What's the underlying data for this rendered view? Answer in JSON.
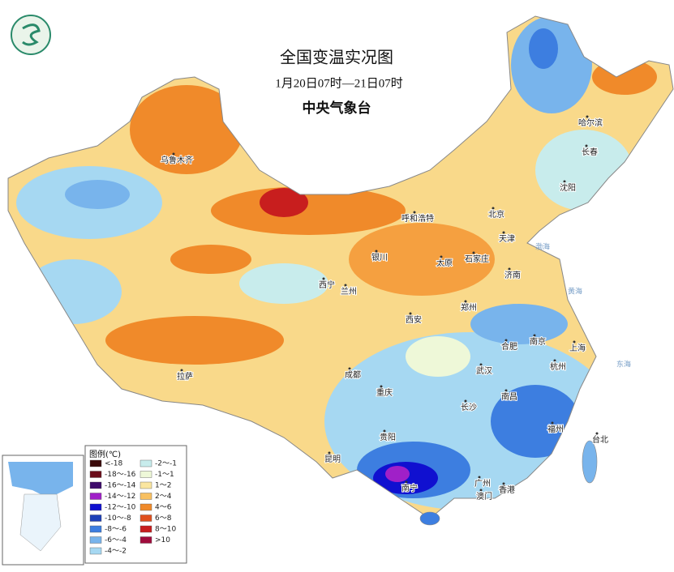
{
  "title": "全国变温实况图",
  "subtitle": "1月20日07时—21日07时",
  "issuer": "中央气象台",
  "cities": [
    "乌鲁木齐",
    "呼和浩特",
    "北京",
    "天津",
    "哈尔滨",
    "长春",
    "沈阳",
    "银川",
    "太原",
    "石家庄",
    "西宁",
    "兰州",
    "济南",
    "郑州",
    "西安",
    "合肥",
    "南京",
    "上海",
    "成都",
    "武汉",
    "杭州",
    "拉萨",
    "重庆",
    "长沙",
    "南昌",
    "福州",
    "贵阳",
    "台北",
    "昆明",
    "广州",
    "澳门",
    "香港",
    "南宁"
  ],
  "seas": [
    "渤海",
    "黄海",
    "东海"
  ],
  "legend": {
    "title": "图例(℃)",
    "items": [
      {
        "label": "<-18",
        "color": "#3a0a0a"
      },
      {
        "label": "-18～-16",
        "color": "#6b0d1a"
      },
      {
        "label": "-16～-14",
        "color": "#3d0a6b"
      },
      {
        "label": "-14～-12",
        "color": "#a020c8"
      },
      {
        "label": "-12～-10",
        "color": "#1010d0"
      },
      {
        "label": "-10～-8",
        "color": "#1d3fb8"
      },
      {
        "label": "-8～-6",
        "color": "#3d7ee0"
      },
      {
        "label": "-6～-4",
        "color": "#78b4ec"
      },
      {
        "label": "-4～-2",
        "color": "#a6d8f2"
      },
      {
        "label": "-2～-1",
        "color": "#c8ecec"
      },
      {
        "label": "-1～1",
        "color": "#eef8d8"
      },
      {
        "label": "1～2",
        "color": "#fae6a0"
      },
      {
        "label": "2～4",
        "color": "#f8c060"
      },
      {
        "label": "4～6",
        "color": "#f08a2a"
      },
      {
        "label": "6～8",
        "color": "#e0501e"
      },
      {
        "label": "8～10",
        "color": "#c81e1e"
      },
      {
        "label": ">10",
        "color": "#a00c3c"
      }
    ]
  }
}
